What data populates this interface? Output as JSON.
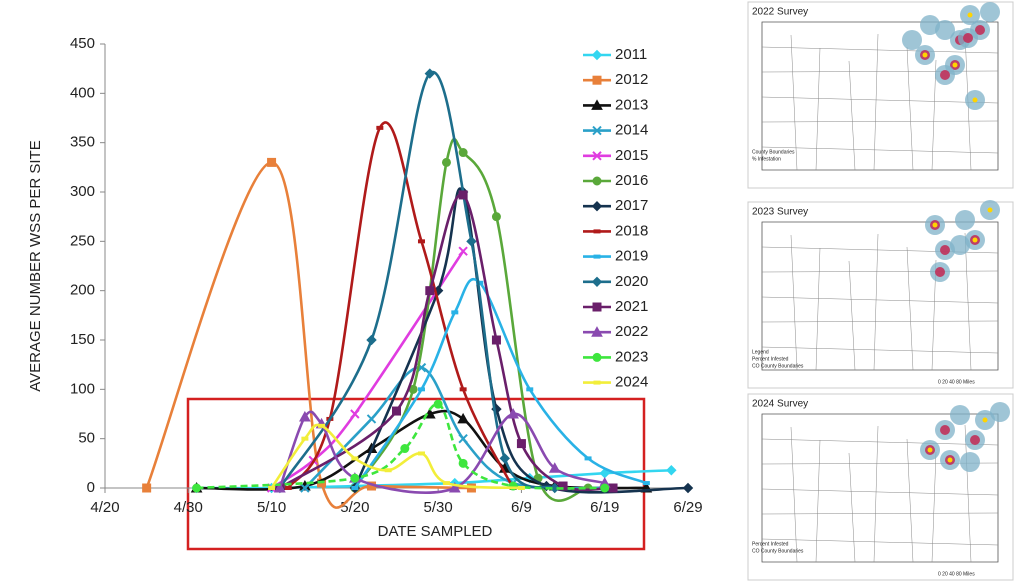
{
  "chart_data": {
    "type": "line",
    "y_label": "AVERAGE NUMBER WSS PER SITE",
    "x_label": "DATE SAMPLED",
    "xlim": [
      "4/20",
      "6/29"
    ],
    "xticks": [
      "4/20",
      "4/30",
      "5/10",
      "5/20",
      "5/30",
      "6/9",
      "6/19",
      "6/29"
    ],
    "ylim": [
      0,
      450
    ],
    "yticks": [
      0,
      50,
      100,
      150,
      200,
      250,
      300,
      350,
      400,
      450
    ],
    "series": [
      {
        "name": "2011",
        "color": "#33d6f0",
        "marker": "diamond",
        "x": [
          "5/1",
          "5/10",
          "5/20",
          "6/1",
          "6/10",
          "6/19",
          "6/27"
        ],
        "values": [
          0,
          0,
          2,
          5,
          10,
          15,
          18
        ]
      },
      {
        "name": "2012",
        "color": "#e8803a",
        "marker": "square",
        "x": [
          "4/25",
          "5/10",
          "5/16",
          "5/22",
          "6/3"
        ],
        "values": [
          0,
          330,
          5,
          2,
          0
        ]
      },
      {
        "name": "2013",
        "color": "#111111",
        "marker": "triangle",
        "x": [
          "5/1",
          "5/14",
          "5/22",
          "5/29",
          "6/2",
          "6/7",
          "6/13",
          "6/24"
        ],
        "values": [
          0,
          2,
          40,
          75,
          70,
          20,
          2,
          0
        ]
      },
      {
        "name": "2014",
        "color": "#2aa0c8",
        "marker": "x",
        "x": [
          "5/14",
          "5/22",
          "5/28",
          "6/2",
          "6/8",
          "6/19"
        ],
        "values": [
          0,
          70,
          122,
          50,
          5,
          0
        ]
      },
      {
        "name": "2015",
        "color": "#e03ce0",
        "marker": "x",
        "x": [
          "5/10",
          "5/15",
          "5/20",
          "6/2"
        ],
        "values": [
          0,
          28,
          75,
          240
        ]
      },
      {
        "name": "2016",
        "color": "#5aa83a",
        "marker": "circle",
        "x": [
          "5/20",
          "5/27",
          "5/31",
          "6/2",
          "6/6",
          "6/11",
          "6/17"
        ],
        "values": [
          0,
          100,
          330,
          340,
          275,
          10,
          0
        ]
      },
      {
        "name": "2017",
        "color": "#15334f",
        "marker": "diamond",
        "x": [
          "5/20",
          "5/30",
          "6/2",
          "6/6",
          "6/12",
          "6/29"
        ],
        "values": [
          0,
          200,
          300,
          80,
          2,
          0
        ]
      },
      {
        "name": "2018",
        "color": "#b01a1a",
        "marker": "dash",
        "x": [
          "5/12",
          "5/17",
          "5/23",
          "5/28",
          "6/2",
          "6/8"
        ],
        "values": [
          0,
          70,
          365,
          250,
          100,
          0
        ]
      },
      {
        "name": "2019",
        "color": "#29b2e6",
        "marker": "dash",
        "x": [
          "5/20",
          "5/28",
          "6/1",
          "6/4",
          "6/10",
          "6/17",
          "6/24"
        ],
        "values": [
          0,
          100,
          178,
          208,
          100,
          30,
          5
        ]
      },
      {
        "name": "2020",
        "color": "#1d6e8c",
        "marker": "diamond",
        "x": [
          "5/11",
          "5/22",
          "5/29",
          "6/3",
          "6/7",
          "6/13"
        ],
        "values": [
          0,
          150,
          420,
          250,
          30,
          0
        ]
      },
      {
        "name": "2021",
        "color": "#6a1f6a",
        "marker": "square",
        "x": [
          "5/11",
          "5/25",
          "5/29",
          "6/2",
          "6/6",
          "6/9",
          "6/14",
          "6/20"
        ],
        "values": [
          0,
          78,
          200,
          297,
          150,
          45,
          2,
          0
        ]
      },
      {
        "name": "2022",
        "color": "#8a4ab0",
        "marker": "triangle",
        "x": [
          "5/11",
          "5/14",
          "5/16",
          "5/20",
          "6/1",
          "6/8",
          "6/13",
          "6/19"
        ],
        "values": [
          0,
          72,
          65,
          10,
          0,
          75,
          20,
          5
        ]
      },
      {
        "name": "2023",
        "color": "#3ee63e",
        "marker": "circle",
        "dashed": true,
        "x": [
          "5/1",
          "5/20",
          "5/26",
          "5/30",
          "6/2",
          "6/8",
          "6/19"
        ],
        "values": [
          0,
          10,
          40,
          85,
          25,
          2,
          0
        ]
      },
      {
        "name": "2024",
        "color": "#f2ee3a",
        "marker": "dash",
        "x": [
          "5/10",
          "5/14",
          "5/16",
          "5/20",
          "5/24",
          "5/28",
          "5/31",
          "6/9"
        ],
        "values": [
          0,
          50,
          63,
          30,
          18,
          35,
          5,
          0
        ]
      }
    ]
  },
  "maps": [
    {
      "title": "2022 Survey",
      "labels": [
        "County Boundaries",
        "% Infestation"
      ]
    },
    {
      "title": "2023 Survey",
      "labels": [
        "Legend",
        "Percent Infested",
        "CO County Boundaries",
        "0 20 40 80 Miles"
      ]
    },
    {
      "title": "2024 Survey",
      "labels": [
        "Percent Infested",
        "CO County Boundaries",
        "0 20 40 80 Miles"
      ]
    }
  ]
}
